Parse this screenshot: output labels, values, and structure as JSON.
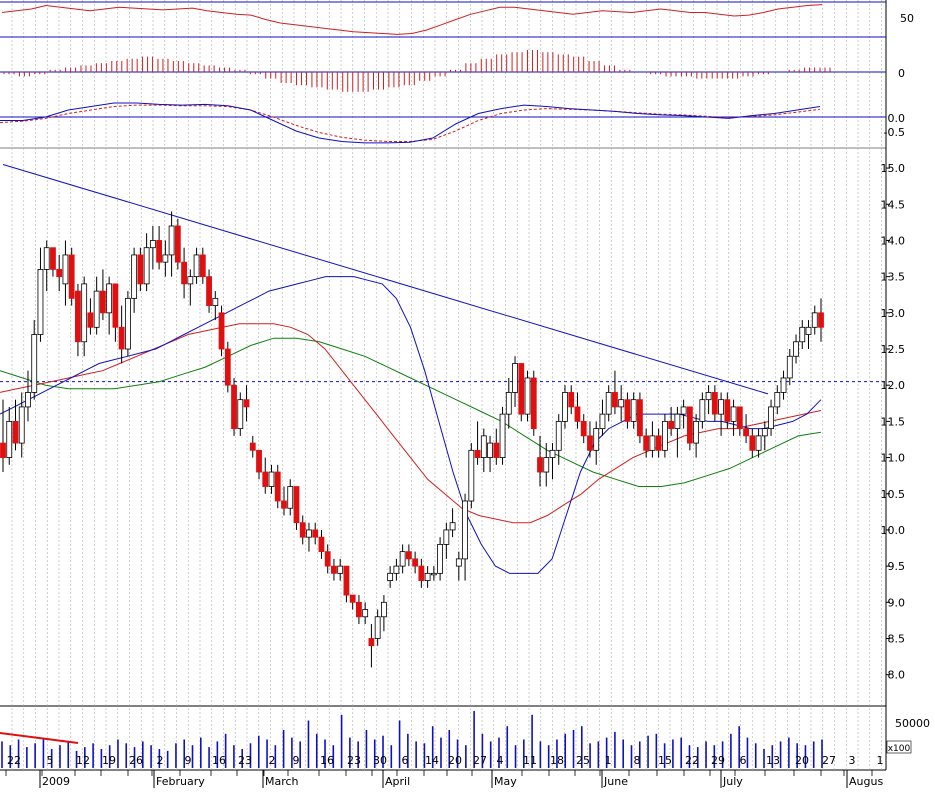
{
  "chart_data": {
    "type": "candlestick",
    "x_tick_days": [
      "22",
      "5",
      "12",
      "19",
      "26",
      "2",
      "9",
      "16",
      "23",
      "2",
      "9",
      "16",
      "23",
      "30",
      "6",
      "14",
      "20",
      "27",
      "4",
      "11",
      "18",
      "25",
      "1",
      "8",
      "15",
      "22",
      "29",
      "6",
      "13",
      "20",
      "27",
      "3",
      "1"
    ],
    "x_tick_months": [
      "2009",
      "February",
      "March",
      "April",
      "May",
      "June",
      "July",
      "Augus"
    ],
    "price_ticks": [
      "15.0",
      "14.5",
      "14.0",
      "13.5",
      "13.0",
      "12.5",
      "12.0",
      "11.5",
      "11.0",
      "10.5",
      "10.0",
      "9.5",
      "9.0",
      "8.5",
      "8.0"
    ],
    "rsi_ticks": [
      "50"
    ],
    "macd_hist_ticks": [
      "0"
    ],
    "macd_ticks": [
      "0.0",
      "-0.5"
    ],
    "volume_ticks": [
      "50000"
    ],
    "volume_unit": "x100",
    "candles": [
      {
        "o": 11.2,
        "h": 11.8,
        "l": 10.8,
        "c": 11.0
      },
      {
        "o": 11.0,
        "h": 11.7,
        "l": 10.9,
        "c": 11.5
      },
      {
        "o": 11.5,
        "h": 11.8,
        "l": 11.1,
        "c": 11.2
      },
      {
        "o": 11.2,
        "h": 11.9,
        "l": 11.0,
        "c": 11.7
      },
      {
        "o": 11.7,
        "h": 12.2,
        "l": 11.5,
        "c": 11.9
      },
      {
        "o": 11.9,
        "h": 12.9,
        "l": 11.8,
        "c": 12.7
      },
      {
        "o": 12.7,
        "h": 13.9,
        "l": 12.6,
        "c": 13.6
      },
      {
        "o": 13.6,
        "h": 14.0,
        "l": 13.3,
        "c": 13.9
      },
      {
        "o": 13.9,
        "h": 13.9,
        "l": 13.5,
        "c": 13.6
      },
      {
        "o": 13.6,
        "h": 13.8,
        "l": 13.3,
        "c": 13.5
      },
      {
        "o": 13.4,
        "h": 14.0,
        "l": 13.1,
        "c": 13.8
      },
      {
        "o": 13.8,
        "h": 13.9,
        "l": 13.1,
        "c": 13.2
      },
      {
        "o": 13.3,
        "h": 13.4,
        "l": 12.4,
        "c": 12.6
      },
      {
        "o": 12.6,
        "h": 13.5,
        "l": 12.4,
        "c": 13.4
      },
      {
        "o": 13.0,
        "h": 13.2,
        "l": 12.7,
        "c": 12.8
      },
      {
        "o": 12.8,
        "h": 13.5,
        "l": 12.7,
        "c": 13.3
      },
      {
        "o": 13.3,
        "h": 13.6,
        "l": 12.9,
        "c": 13.0
      },
      {
        "o": 13.0,
        "h": 13.5,
        "l": 12.7,
        "c": 13.4
      },
      {
        "o": 13.4,
        "h": 13.4,
        "l": 12.6,
        "c": 12.8
      },
      {
        "o": 12.8,
        "h": 13.1,
        "l": 12.3,
        "c": 12.5
      },
      {
        "o": 12.5,
        "h": 13.3,
        "l": 12.4,
        "c": 13.2
      },
      {
        "o": 13.2,
        "h": 13.9,
        "l": 13.0,
        "c": 13.8
      },
      {
        "o": 13.8,
        "h": 13.9,
        "l": 13.3,
        "c": 13.4
      },
      {
        "o": 13.4,
        "h": 14.1,
        "l": 13.3,
        "c": 13.9
      },
      {
        "o": 13.9,
        "h": 14.2,
        "l": 13.6,
        "c": 14.0
      },
      {
        "o": 14.0,
        "h": 14.2,
        "l": 13.6,
        "c": 13.7
      },
      {
        "o": 13.7,
        "h": 14.0,
        "l": 13.5,
        "c": 13.8
      },
      {
        "o": 13.8,
        "h": 14.4,
        "l": 13.5,
        "c": 14.2
      },
      {
        "o": 14.2,
        "h": 14.3,
        "l": 13.6,
        "c": 13.7
      },
      {
        "o": 13.7,
        "h": 13.9,
        "l": 13.2,
        "c": 13.4
      },
      {
        "o": 13.4,
        "h": 13.6,
        "l": 13.1,
        "c": 13.5
      },
      {
        "o": 13.5,
        "h": 13.9,
        "l": 13.4,
        "c": 13.8
      },
      {
        "o": 13.8,
        "h": 13.9,
        "l": 13.4,
        "c": 13.5
      },
      {
        "o": 13.5,
        "h": 13.6,
        "l": 13.0,
        "c": 13.1
      },
      {
        "o": 13.1,
        "h": 13.3,
        "l": 12.9,
        "c": 13.2
      },
      {
        "o": 13.0,
        "h": 13.1,
        "l": 12.4,
        "c": 12.5
      },
      {
        "o": 12.5,
        "h": 12.6,
        "l": 11.9,
        "c": 12.0
      },
      {
        "o": 12.0,
        "h": 12.1,
        "l": 11.3,
        "c": 11.4
      },
      {
        "o": 11.4,
        "h": 11.9,
        "l": 11.3,
        "c": 11.8
      },
      {
        "o": 11.8,
        "h": 12.0,
        "l": 11.5,
        "c": 11.7
      },
      {
        "o": 11.2,
        "h": 11.3,
        "l": 11.0,
        "c": 11.1
      },
      {
        "o": 11.1,
        "h": 11.1,
        "l": 10.7,
        "c": 10.8
      },
      {
        "o": 10.8,
        "h": 11.0,
        "l": 10.5,
        "c": 10.6
      },
      {
        "o": 10.6,
        "h": 10.9,
        "l": 10.5,
        "c": 10.8
      },
      {
        "o": 10.8,
        "h": 10.9,
        "l": 10.3,
        "c": 10.4
      },
      {
        "o": 10.4,
        "h": 10.6,
        "l": 10.2,
        "c": 10.3
      },
      {
        "o": 10.3,
        "h": 10.7,
        "l": 10.2,
        "c": 10.6
      },
      {
        "o": 10.6,
        "h": 10.6,
        "l": 10.0,
        "c": 10.1
      },
      {
        "o": 10.1,
        "h": 10.2,
        "l": 9.8,
        "c": 9.9
      },
      {
        "o": 9.9,
        "h": 10.1,
        "l": 9.7,
        "c": 10.0
      },
      {
        "o": 10.0,
        "h": 10.1,
        "l": 9.8,
        "c": 9.9
      },
      {
        "o": 9.9,
        "h": 10.0,
        "l": 9.6,
        "c": 9.7
      },
      {
        "o": 9.7,
        "h": 9.8,
        "l": 9.4,
        "c": 9.5
      },
      {
        "o": 9.5,
        "h": 9.6,
        "l": 9.3,
        "c": 9.4
      },
      {
        "o": 9.4,
        "h": 9.6,
        "l": 9.3,
        "c": 9.5
      },
      {
        "o": 9.5,
        "h": 9.5,
        "l": 9.0,
        "c": 9.1
      },
      {
        "o": 9.1,
        "h": 9.1,
        "l": 8.9,
        "c": 9.0
      },
      {
        "o": 9.0,
        "h": 9.1,
        "l": 8.7,
        "c": 8.8
      },
      {
        "o": 8.8,
        "h": 9.0,
        "l": 8.7,
        "c": 8.9
      },
      {
        "o": 8.5,
        "h": 8.7,
        "l": 8.1,
        "c": 8.4
      },
      {
        "o": 8.5,
        "h": 8.9,
        "l": 8.4,
        "c": 8.8
      },
      {
        "o": 8.8,
        "h": 9.1,
        "l": 8.6,
        "c": 9.0
      },
      {
        "o": 9.3,
        "h": 9.5,
        "l": 9.2,
        "c": 9.4
      },
      {
        "o": 9.4,
        "h": 9.6,
        "l": 9.3,
        "c": 9.5
      },
      {
        "o": 9.5,
        "h": 9.8,
        "l": 9.4,
        "c": 9.7
      },
      {
        "o": 9.7,
        "h": 9.8,
        "l": 9.5,
        "c": 9.6
      },
      {
        "o": 9.6,
        "h": 9.7,
        "l": 9.4,
        "c": 9.5
      },
      {
        "o": 9.5,
        "h": 9.6,
        "l": 9.2,
        "c": 9.3
      },
      {
        "o": 9.3,
        "h": 9.5,
        "l": 9.2,
        "c": 9.4
      },
      {
        "o": 9.4,
        "h": 9.5,
        "l": 9.3,
        "c": 9.4
      },
      {
        "o": 9.4,
        "h": 9.9,
        "l": 9.3,
        "c": 9.8
      },
      {
        "o": 9.8,
        "h": 10.1,
        "l": 9.6,
        "c": 10.0
      },
      {
        "o": 10.0,
        "h": 10.3,
        "l": 9.9,
        "c": 10.1
      },
      {
        "o": 9.5,
        "h": 9.7,
        "l": 9.3,
        "c": 9.6
      },
      {
        "o": 9.6,
        "h": 10.5,
        "l": 9.3,
        "c": 10.4
      },
      {
        "o": 10.4,
        "h": 11.2,
        "l": 10.3,
        "c": 11.1
      },
      {
        "o": 11.1,
        "h": 11.5,
        "l": 10.9,
        "c": 11.0
      },
      {
        "o": 11.0,
        "h": 11.4,
        "l": 10.8,
        "c": 11.3
      },
      {
        "o": 11.0,
        "h": 11.3,
        "l": 10.8,
        "c": 11.2
      },
      {
        "o": 11.2,
        "h": 11.4,
        "l": 10.9,
        "c": 11.0
      },
      {
        "o": 11.0,
        "h": 11.7,
        "l": 10.9,
        "c": 11.6
      },
      {
        "o": 11.6,
        "h": 12.1,
        "l": 11.4,
        "c": 11.9
      },
      {
        "o": 11.9,
        "h": 12.4,
        "l": 11.7,
        "c": 12.3
      },
      {
        "o": 12.3,
        "h": 12.3,
        "l": 11.5,
        "c": 11.6
      },
      {
        "o": 11.6,
        "h": 12.2,
        "l": 11.5,
        "c": 12.1
      },
      {
        "o": 12.1,
        "h": 12.2,
        "l": 11.3,
        "c": 11.4
      },
      {
        "o": 11.0,
        "h": 11.3,
        "l": 10.6,
        "c": 10.8
      },
      {
        "o": 10.8,
        "h": 11.2,
        "l": 10.6,
        "c": 11.0
      },
      {
        "o": 11.0,
        "h": 11.2,
        "l": 10.7,
        "c": 11.1
      },
      {
        "o": 11.1,
        "h": 11.6,
        "l": 10.9,
        "c": 11.5
      },
      {
        "o": 11.5,
        "h": 12.0,
        "l": 11.4,
        "c": 11.9
      },
      {
        "o": 11.9,
        "h": 12.0,
        "l": 11.6,
        "c": 11.7
      },
      {
        "o": 11.7,
        "h": 11.9,
        "l": 11.4,
        "c": 11.5
      },
      {
        "o": 11.5,
        "h": 11.6,
        "l": 11.2,
        "c": 11.3
      },
      {
        "o": 11.3,
        "h": 11.5,
        "l": 11.0,
        "c": 11.1
      },
      {
        "o": 11.1,
        "h": 11.5,
        "l": 10.9,
        "c": 11.4
      },
      {
        "o": 11.4,
        "h": 11.8,
        "l": 11.3,
        "c": 11.6
      },
      {
        "o": 11.6,
        "h": 12.0,
        "l": 11.5,
        "c": 11.9
      },
      {
        "o": 11.9,
        "h": 12.2,
        "l": 11.6,
        "c": 11.7
      },
      {
        "o": 11.7,
        "h": 12.0,
        "l": 11.5,
        "c": 11.8
      },
      {
        "o": 11.8,
        "h": 11.9,
        "l": 11.4,
        "c": 11.5
      },
      {
        "o": 11.5,
        "h": 11.9,
        "l": 11.4,
        "c": 11.8
      },
      {
        "o": 11.8,
        "h": 11.9,
        "l": 11.2,
        "c": 11.3
      },
      {
        "o": 11.3,
        "h": 11.4,
        "l": 11.0,
        "c": 11.1
      },
      {
        "o": 11.1,
        "h": 11.5,
        "l": 11.0,
        "c": 11.3
      },
      {
        "o": 11.3,
        "h": 11.4,
        "l": 11.0,
        "c": 11.1
      },
      {
        "o": 11.1,
        "h": 11.6,
        "l": 11.0,
        "c": 11.5
      },
      {
        "o": 11.5,
        "h": 11.7,
        "l": 11.3,
        "c": 11.4
      },
      {
        "o": 11.4,
        "h": 11.7,
        "l": 11.0,
        "c": 11.6
      },
      {
        "o": 11.6,
        "h": 11.8,
        "l": 11.4,
        "c": 11.7
      },
      {
        "o": 11.7,
        "h": 11.7,
        "l": 11.1,
        "c": 11.2
      },
      {
        "o": 11.2,
        "h": 11.6,
        "l": 11.0,
        "c": 11.5
      },
      {
        "o": 11.5,
        "h": 11.9,
        "l": 11.4,
        "c": 11.8
      },
      {
        "o": 11.8,
        "h": 12.0,
        "l": 11.6,
        "c": 11.9
      },
      {
        "o": 11.9,
        "h": 12.0,
        "l": 11.5,
        "c": 11.6
      },
      {
        "o": 11.6,
        "h": 11.9,
        "l": 11.3,
        "c": 11.8
      },
      {
        "o": 11.8,
        "h": 11.9,
        "l": 11.4,
        "c": 11.5
      },
      {
        "o": 11.5,
        "h": 11.8,
        "l": 11.3,
        "c": 11.7
      },
      {
        "o": 11.7,
        "h": 11.7,
        "l": 11.3,
        "c": 11.4
      },
      {
        "o": 11.4,
        "h": 11.6,
        "l": 11.2,
        "c": 11.3
      },
      {
        "o": 11.3,
        "h": 11.4,
        "l": 11.0,
        "c": 11.1
      },
      {
        "o": 11.1,
        "h": 11.4,
        "l": 11.0,
        "c": 11.3
      },
      {
        "o": 11.3,
        "h": 11.5,
        "l": 11.1,
        "c": 11.4
      },
      {
        "o": 11.4,
        "h": 11.8,
        "l": 11.3,
        "c": 11.7
      },
      {
        "o": 11.7,
        "h": 12.0,
        "l": 11.6,
        "c": 11.9
      },
      {
        "o": 11.9,
        "h": 12.2,
        "l": 11.8,
        "c": 12.1
      },
      {
        "o": 12.1,
        "h": 12.5,
        "l": 12.0,
        "c": 12.4
      },
      {
        "o": 12.4,
        "h": 12.7,
        "l": 12.3,
        "c": 12.6
      },
      {
        "o": 12.6,
        "h": 12.9,
        "l": 12.5,
        "c": 12.8
      },
      {
        "o": 12.7,
        "h": 12.9,
        "l": 12.5,
        "c": 12.8
      },
      {
        "o": 12.8,
        "h": 13.1,
        "l": 12.7,
        "c": 13.0
      },
      {
        "o": 13.0,
        "h": 13.2,
        "l": 12.6,
        "c": 12.8
      }
    ],
    "overlays": {
      "ma_short": {
        "color": "#1010c0",
        "values": [
          11.6,
          11.7,
          11.8,
          11.9,
          12.0,
          12.1,
          12.2,
          12.3,
          12.35,
          12.4,
          12.45,
          12.5,
          12.6,
          12.7,
          12.8,
          12.9,
          13.0,
          13.1,
          13.2,
          13.3,
          13.35,
          13.4,
          13.45,
          13.5,
          13.5,
          13.5,
          13.45,
          13.4,
          13.2,
          12.8,
          12.2,
          11.5,
          10.8,
          10.2,
          9.8,
          9.5,
          9.4,
          9.4,
          9.4,
          9.6,
          10.2,
          10.8,
          11.2,
          11.4,
          11.5,
          11.6,
          11.6,
          11.6,
          11.6,
          11.55,
          11.5,
          11.5,
          11.45,
          11.4,
          11.4,
          11.45,
          11.5,
          11.6,
          11.8
        ]
      },
      "ma_mid": {
        "color": "#d02020",
        "values": [
          11.9,
          11.95,
          12.0,
          12.05,
          12.1,
          12.15,
          12.2,
          12.3,
          12.4,
          12.5,
          12.6,
          12.7,
          12.75,
          12.8,
          12.85,
          12.85,
          12.85,
          12.8,
          12.7,
          12.5,
          12.2,
          11.9,
          11.6,
          11.3,
          11.0,
          10.7,
          10.5,
          10.3,
          10.2,
          10.15,
          10.1,
          10.1,
          10.2,
          10.35,
          10.5,
          10.7,
          10.85,
          11.0,
          11.1,
          11.2,
          11.3,
          11.35,
          11.4,
          11.4,
          11.45,
          11.5,
          11.55,
          11.6,
          11.65
        ]
      },
      "ma_long": {
        "color": "#108010",
        "values": [
          12.2,
          12.1,
          12.0,
          11.95,
          11.95,
          11.95,
          12.0,
          12.05,
          12.15,
          12.25,
          12.4,
          12.55,
          12.65,
          12.65,
          12.6,
          12.5,
          12.4,
          12.25,
          12.1,
          11.95,
          11.8,
          11.65,
          11.5,
          11.3,
          11.1,
          10.95,
          10.8,
          10.7,
          10.6,
          10.6,
          10.65,
          10.75,
          10.85,
          11.0,
          11.15,
          11.3,
          11.35
        ]
      },
      "trendline": {
        "color": "#1010c0",
        "from": {
          "i": 0,
          "v": 15.05
        },
        "to": {
          "i": 135,
          "v": 11.95
        }
      },
      "resistance": {
        "color": "#1010c0",
        "value": 12.05
      }
    },
    "rsi": [
      58,
      60,
      62,
      66,
      64,
      62,
      60,
      62,
      64,
      63,
      62,
      61,
      62,
      63,
      60,
      58,
      56,
      55,
      50,
      46,
      44,
      42,
      40,
      38,
      36,
      35,
      34,
      33,
      34,
      38,
      44,
      50,
      56,
      60,
      64,
      64,
      62,
      60,
      58,
      56,
      58,
      60,
      59,
      58,
      60,
      62,
      60,
      58,
      58,
      56,
      54,
      55,
      58,
      62,
      64,
      66,
      67
    ],
    "macd_hist": [
      -1,
      -2,
      -1,
      1,
      2,
      3,
      4,
      5,
      6,
      7,
      6,
      5,
      4,
      3,
      2,
      1,
      -1,
      -3,
      -5,
      -6,
      -7,
      -8,
      -9,
      -9,
      -8,
      -7,
      -6,
      -4,
      -2,
      1,
      4,
      6,
      8,
      9,
      10,
      9,
      8,
      7,
      5,
      3,
      1,
      0,
      -1,
      -2,
      -2,
      -3,
      -3,
      -3,
      -2,
      -1,
      0,
      1,
      2,
      2
    ],
    "macd_line": [
      -0.05,
      -0.05,
      0.0,
      0.1,
      0.15,
      0.2,
      0.2,
      0.18,
      0.17,
      0.18,
      0.16,
      0.1,
      -0.05,
      -0.2,
      -0.3,
      -0.35,
      -0.37,
      -0.37,
      -0.36,
      -0.3,
      -0.1,
      0.05,
      0.12,
      0.17,
      0.15,
      0.12,
      0.1,
      0.08,
      0.05,
      0.03,
      0.02,
      0.0,
      -0.02,
      0.02,
      0.05,
      0.1,
      0.15
    ],
    "macd_signal": [
      -0.08,
      -0.06,
      -0.02,
      0.05,
      0.1,
      0.15,
      0.17,
      0.17,
      0.16,
      0.16,
      0.15,
      0.1,
      0.0,
      -0.12,
      -0.22,
      -0.29,
      -0.33,
      -0.35,
      -0.35,
      -0.32,
      -0.2,
      -0.05,
      0.05,
      0.1,
      0.12,
      0.11,
      0.1,
      0.08,
      0.06,
      0.04,
      0.03,
      0.01,
      -0.01,
      0.01,
      0.03,
      0.07,
      0.11
    ],
    "volume": [
      14,
      12,
      15,
      11,
      13,
      16,
      10,
      12,
      14,
      9,
      11,
      13,
      10,
      12,
      15,
      13,
      11,
      14,
      12,
      10,
      9,
      13,
      15,
      12,
      16,
      11,
      14,
      18,
      12,
      10,
      13,
      17,
      15,
      12,
      20,
      16,
      14,
      25,
      18,
      15,
      12,
      28,
      16,
      14,
      20,
      15,
      17,
      12,
      25,
      18,
      14,
      13,
      22,
      16,
      20,
      15,
      12,
      30,
      18,
      14,
      16,
      22,
      12,
      15,
      28,
      14,
      12,
      15,
      18,
      20,
      22,
      13,
      14,
      16,
      19,
      15,
      12,
      14,
      17,
      18,
      13,
      15,
      16,
      12,
      11,
      14,
      12,
      14,
      18,
      22,
      16,
      13,
      10,
      12,
      14,
      16,
      13,
      12,
      14,
      15
    ]
  }
}
